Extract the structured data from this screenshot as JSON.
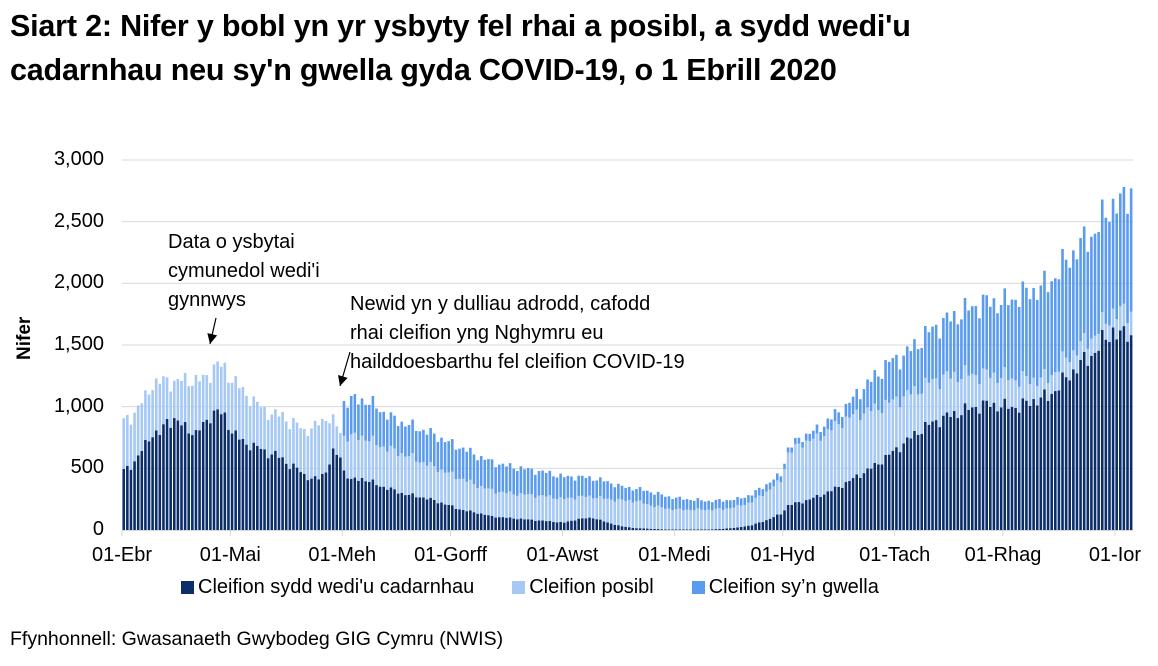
{
  "title": {
    "line1": "Siart 2: Nifer y bobl yn yr ysbyty fel rhai a posibl, a sydd wedi'u",
    "line2": "cadarnhau neu sy'n gwella gyda COVID-19, o 1 Ebrill 2020"
  },
  "source": "Ffynhonnell: Gwasanaeth Gwybodeg GIG Cymru (NWIS)",
  "colors": {
    "confirmed": "#0B2E6B",
    "suspected": "#A5C8F5",
    "recovering": "#5A9BEF",
    "grid": "#D9D9D9",
    "axis": "#D9D9D9"
  },
  "annotations": [
    {
      "lines": [
        "Data o ysbytai",
        "cymunedol wedi'i",
        "gynnwys"
      ]
    },
    {
      "lines": [
        "Newid yn y dulliau adrodd, cafodd",
        "rhai cleifion yng Nghymru eu",
        "hailddoesbarthu fel cleifion COVID-19"
      ]
    }
  ],
  "chart_data": {
    "type": "bar",
    "stacked": true,
    "title": "Siart 2: Nifer y bobl yn yr ysbyty fel rhai a posibl, a sydd wedi'u cadarnhau neu sy'n gwella gyda COVID-19, o 1 Ebrill 2020",
    "xlabel": "",
    "ylabel": "Nifer",
    "ylim": [
      0,
      3000
    ],
    "yticks": [
      0,
      500,
      1000,
      1500,
      2000,
      2500,
      3000
    ],
    "ytick_labels": [
      "0",
      "500",
      "1,000",
      "1,500",
      "2,000",
      "2,500",
      "3,000"
    ],
    "xtick_labels": [
      "01-Ebr",
      "01-Mai",
      "01-Meh",
      "01-Gorff",
      "01-Awst",
      "01-Medi",
      "01-Hyd",
      "01-Tach",
      "01-Rhag",
      "01-Ior"
    ],
    "xtick_day_index": [
      0,
      30,
      61,
      91,
      122,
      153,
      183,
      214,
      244,
      275
    ],
    "grid": true,
    "legend_position": "bottom",
    "legend": [
      "Cleifion sydd wedi'u cadarnhau",
      "Cleifion posibl",
      "Cleifion sy’n gwella"
    ],
    "x_start": "2020-04-01",
    "n_days": 280,
    "series_keypoints_note": "Daily values interpolated from keypoints [day_index, value] read off the chart",
    "series": [
      {
        "name": "Cleifion sydd wedi'u cadarnhau",
        "keypoints": [
          [
            0,
            480
          ],
          [
            2,
            520
          ],
          [
            4,
            600
          ],
          [
            6,
            690
          ],
          [
            8,
            790
          ],
          [
            10,
            780
          ],
          [
            12,
            880
          ],
          [
            14,
            900
          ],
          [
            16,
            850
          ],
          [
            18,
            820
          ],
          [
            20,
            780
          ],
          [
            22,
            850
          ],
          [
            24,
            930
          ],
          [
            26,
            960
          ],
          [
            28,
            920
          ],
          [
            30,
            800
          ],
          [
            32,
            740
          ],
          [
            34,
            700
          ],
          [
            36,
            680
          ],
          [
            38,
            660
          ],
          [
            40,
            620
          ],
          [
            42,
            610
          ],
          [
            44,
            580
          ],
          [
            46,
            520
          ],
          [
            48,
            500
          ],
          [
            50,
            450
          ],
          [
            52,
            410
          ],
          [
            54,
            420
          ],
          [
            56,
            480
          ],
          [
            58,
            620
          ],
          [
            60,
            600
          ],
          [
            61,
            480
          ],
          [
            63,
            400
          ],
          [
            66,
            420
          ],
          [
            70,
            370
          ],
          [
            74,
            330
          ],
          [
            78,
            290
          ],
          [
            82,
            270
          ],
          [
            86,
            240
          ],
          [
            90,
            200
          ],
          [
            94,
            160
          ],
          [
            98,
            140
          ],
          [
            102,
            110
          ],
          [
            106,
            100
          ],
          [
            110,
            90
          ],
          [
            114,
            80
          ],
          [
            118,
            70
          ],
          [
            122,
            60
          ],
          [
            126,
            90
          ],
          [
            130,
            100
          ],
          [
            134,
            60
          ],
          [
            138,
            30
          ],
          [
            142,
            15
          ],
          [
            146,
            10
          ],
          [
            150,
            5
          ],
          [
            154,
            5
          ],
          [
            158,
            5
          ],
          [
            162,
            5
          ],
          [
            166,
            10
          ],
          [
            170,
            20
          ],
          [
            174,
            40
          ],
          [
            178,
            80
          ],
          [
            182,
            130
          ],
          [
            184,
            200
          ],
          [
            188,
            230
          ],
          [
            192,
            270
          ],
          [
            196,
            320
          ],
          [
            200,
            380
          ],
          [
            204,
            450
          ],
          [
            208,
            520
          ],
          [
            212,
            610
          ],
          [
            216,
            700
          ],
          [
            220,
            800
          ],
          [
            224,
            870
          ],
          [
            228,
            920
          ],
          [
            232,
            960
          ],
          [
            236,
            1000
          ],
          [
            240,
            1020
          ],
          [
            244,
            1000
          ],
          [
            248,
            1000
          ],
          [
            252,
            1050
          ],
          [
            256,
            1080
          ],
          [
            260,
            1200
          ],
          [
            264,
            1320
          ],
          [
            268,
            1420
          ],
          [
            270,
            1480
          ],
          [
            272,
            1560
          ],
          [
            274,
            1620
          ],
          [
            276,
            1560
          ],
          [
            278,
            1620
          ],
          [
            279,
            1580
          ]
        ]
      },
      {
        "name": "Cleifion posibl",
        "keypoints": [
          [
            0,
            400
          ],
          [
            2,
            390
          ],
          [
            4,
            400
          ],
          [
            6,
            380
          ],
          [
            8,
            400
          ],
          [
            10,
            420
          ],
          [
            12,
            330
          ],
          [
            14,
            300
          ],
          [
            16,
            360
          ],
          [
            18,
            400
          ],
          [
            20,
            430
          ],
          [
            22,
            370
          ],
          [
            24,
            350
          ],
          [
            26,
            380
          ],
          [
            28,
            390
          ],
          [
            30,
            420
          ],
          [
            32,
            420
          ],
          [
            34,
            400
          ],
          [
            36,
            360
          ],
          [
            38,
            340
          ],
          [
            40,
            330
          ],
          [
            42,
            320
          ],
          [
            44,
            360
          ],
          [
            46,
            340
          ],
          [
            48,
            360
          ],
          [
            50,
            360
          ],
          [
            52,
            400
          ],
          [
            54,
            450
          ],
          [
            56,
            430
          ],
          [
            58,
            260
          ],
          [
            60,
            200
          ],
          [
            61,
            280
          ],
          [
            63,
            350
          ],
          [
            66,
            340
          ],
          [
            70,
            330
          ],
          [
            74,
            320
          ],
          [
            78,
            320
          ],
          [
            82,
            290
          ],
          [
            86,
            270
          ],
          [
            90,
            260
          ],
          [
            94,
            250
          ],
          [
            98,
            220
          ],
          [
            102,
            210
          ],
          [
            106,
            200
          ],
          [
            110,
            200
          ],
          [
            114,
            200
          ],
          [
            118,
            200
          ],
          [
            122,
            190
          ],
          [
            126,
            180
          ],
          [
            130,
            170
          ],
          [
            134,
            190
          ],
          [
            138,
            210
          ],
          [
            142,
            220
          ],
          [
            146,
            190
          ],
          [
            150,
            170
          ],
          [
            154,
            160
          ],
          [
            158,
            160
          ],
          [
            162,
            160
          ],
          [
            166,
            160
          ],
          [
            170,
            170
          ],
          [
            174,
            190
          ],
          [
            178,
            230
          ],
          [
            182,
            270
          ],
          [
            184,
            420
          ],
          [
            188,
            480
          ],
          [
            192,
            470
          ],
          [
            196,
            500
          ],
          [
            200,
            520
          ],
          [
            204,
            500
          ],
          [
            208,
            460
          ],
          [
            212,
            420
          ],
          [
            216,
            380
          ],
          [
            220,
            340
          ],
          [
            224,
            340
          ],
          [
            228,
            320
          ],
          [
            232,
            300
          ],
          [
            236,
            260
          ],
          [
            240,
            240
          ],
          [
            244,
            240
          ],
          [
            248,
            220
          ],
          [
            252,
            170
          ],
          [
            256,
            150
          ],
          [
            260,
            160
          ],
          [
            264,
            150
          ],
          [
            268,
            140
          ],
          [
            270,
            140
          ],
          [
            272,
            130
          ],
          [
            274,
            150
          ],
          [
            276,
            190
          ],
          [
            278,
            160
          ],
          [
            279,
            190
          ]
        ]
      },
      {
        "name": "Cleifion sy’n gwella",
        "keypoints": [
          [
            0,
            0
          ],
          [
            60,
            0
          ],
          [
            61,
            280
          ],
          [
            63,
            300
          ],
          [
            66,
            300
          ],
          [
            70,
            300
          ],
          [
            74,
            260
          ],
          [
            78,
            250
          ],
          [
            82,
            260
          ],
          [
            86,
            260
          ],
          [
            90,
            250
          ],
          [
            94,
            250
          ],
          [
            98,
            240
          ],
          [
            102,
            230
          ],
          [
            106,
            220
          ],
          [
            110,
            210
          ],
          [
            114,
            200
          ],
          [
            118,
            190
          ],
          [
            122,
            180
          ],
          [
            126,
            160
          ],
          [
            130,
            150
          ],
          [
            134,
            140
          ],
          [
            138,
            110
          ],
          [
            142,
            100
          ],
          [
            146,
            110
          ],
          [
            150,
            100
          ],
          [
            154,
            90
          ],
          [
            158,
            80
          ],
          [
            162,
            70
          ],
          [
            166,
            70
          ],
          [
            170,
            60
          ],
          [
            174,
            60
          ],
          [
            178,
            60
          ],
          [
            182,
            50
          ],
          [
            184,
            40
          ],
          [
            188,
            50
          ],
          [
            192,
            70
          ],
          [
            196,
            90
          ],
          [
            200,
            100
          ],
          [
            204,
            180
          ],
          [
            208,
            260
          ],
          [
            212,
            330
          ],
          [
            216,
            330
          ],
          [
            220,
            380
          ],
          [
            224,
            420
          ],
          [
            228,
            460
          ],
          [
            232,
            500
          ],
          [
            236,
            560
          ],
          [
            240,
            590
          ],
          [
            244,
            600
          ],
          [
            248,
            680
          ],
          [
            252,
            720
          ],
          [
            256,
            760
          ],
          [
            260,
            780
          ],
          [
            264,
            810
          ],
          [
            268,
            830
          ],
          [
            270,
            840
          ],
          [
            272,
            870
          ],
          [
            274,
            880
          ],
          [
            276,
            880
          ],
          [
            278,
            940
          ],
          [
            279,
            1000
          ]
        ]
      }
    ]
  }
}
